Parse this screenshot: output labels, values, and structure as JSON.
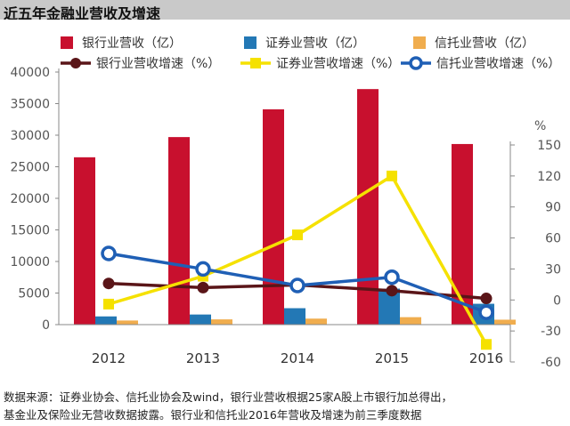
{
  "title": "近五年金融业营收及增速",
  "chart_data": {
    "type": "bar+line",
    "title": "近五年金融业营收及增速",
    "categories": [
      "2012",
      "2013",
      "2014",
      "2015",
      "2016"
    ],
    "bar_series": [
      {
        "name": "银行业营收（亿）",
        "color": "#c8102e",
        "values": [
          26500,
          29700,
          34100,
          37300,
          28600
        ]
      },
      {
        "name": "证券业营收（亿）",
        "color": "#2378b5",
        "values": [
          1300,
          1600,
          2600,
          5700,
          3300
        ]
      },
      {
        "name": "信托业营收（亿）",
        "color": "#f0ad4e",
        "values": [
          650,
          830,
          950,
          1180,
          780
        ]
      }
    ],
    "line_series": [
      {
        "name": "银行业营收增速（%）",
        "color": "#5a1518",
        "marker": "filled-circle",
        "values": [
          16,
          12,
          14.5,
          9,
          1.5
        ]
      },
      {
        "name": "证券业营收增速（%）",
        "color": "#f5e100",
        "marker": "square",
        "values": [
          -4,
          23,
          63,
          120,
          -43
        ]
      },
      {
        "name": "信托业营收增速（%）",
        "color": "#1f5fb5",
        "marker": "hollow-circle",
        "values": [
          45,
          30,
          14,
          22,
          -12
        ]
      }
    ],
    "y_left": {
      "min": 0,
      "max": 40000,
      "ticks": [
        0,
        5000,
        10000,
        15000,
        20000,
        25000,
        30000,
        35000,
        40000
      ],
      "label": ""
    },
    "y_right": {
      "min": -60,
      "max": 150,
      "ticks": [
        -60,
        -30,
        0,
        30,
        60,
        90,
        120,
        150
      ],
      "unit": "%"
    },
    "grid": false,
    "legend_position": "top"
  },
  "source_lines": [
    "数据来源：证券业协会、信托业协会及wind，银行业营收根据25家A股上市银行加总得出，",
    "基金业及保险业无营收数据披露。银行业和信托业2016年营收及增速为前三季度数据"
  ]
}
